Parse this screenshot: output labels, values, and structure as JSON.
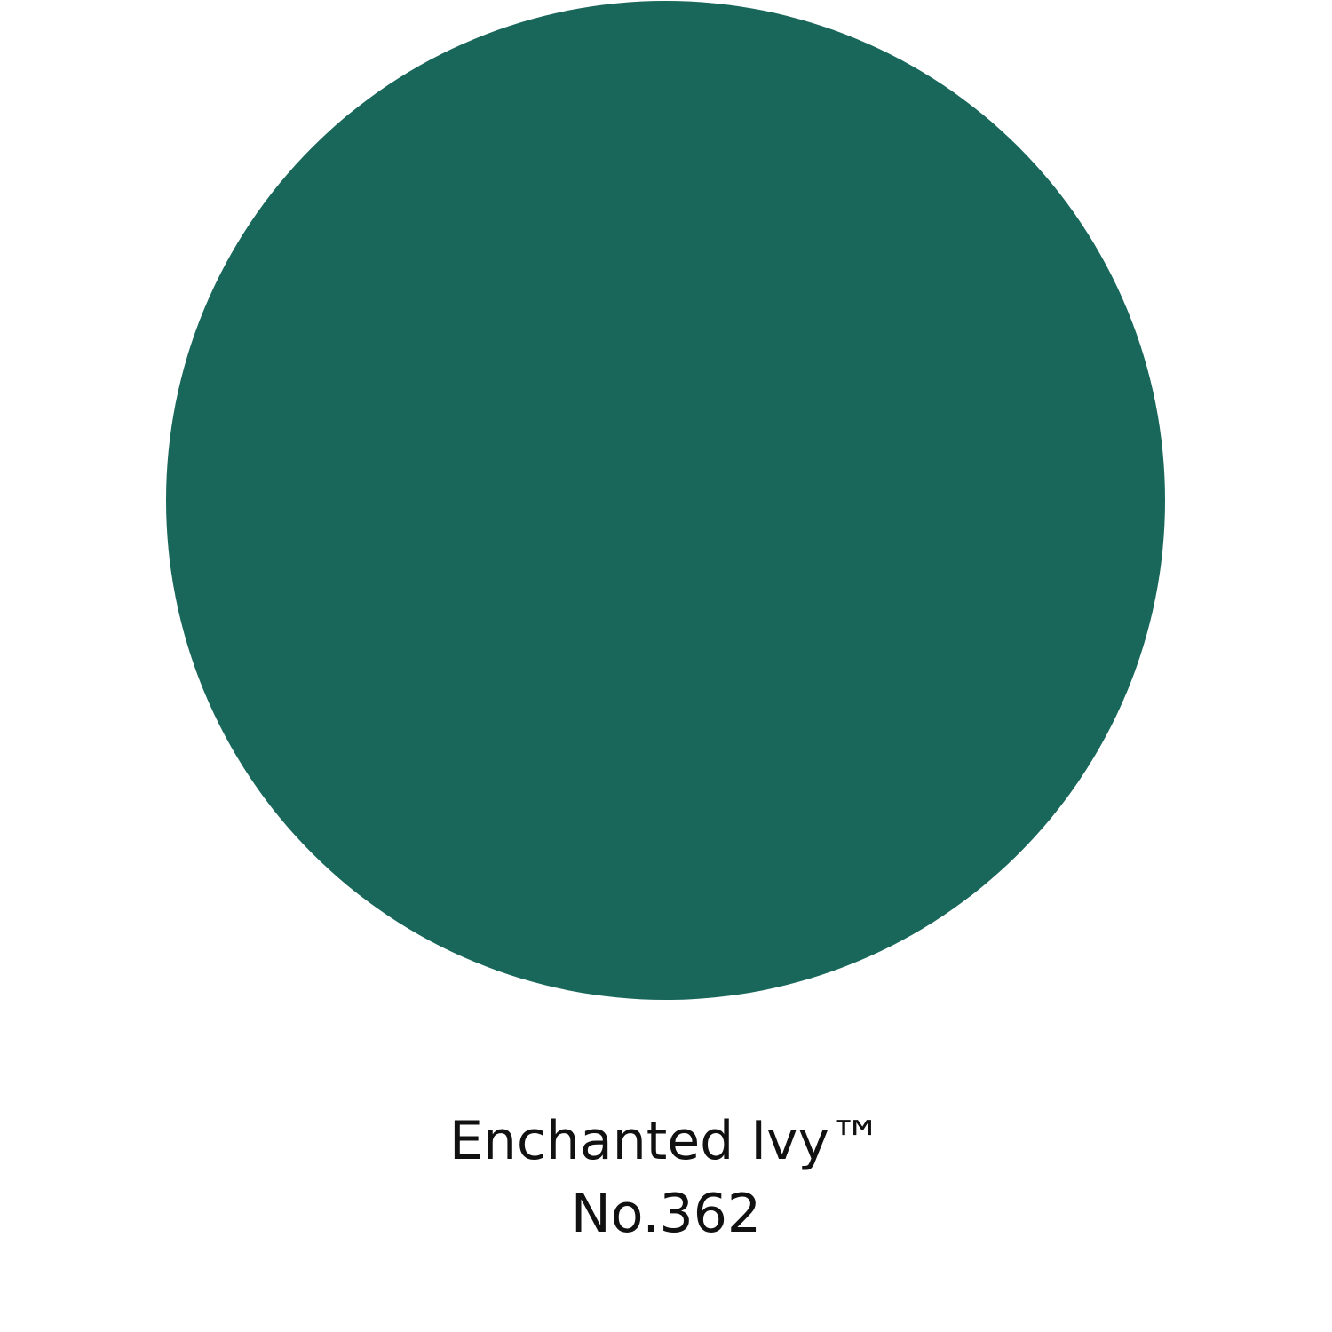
{
  "swatch": {
    "color_hex": "#19675b"
  },
  "caption": {
    "name": "Enchanted Ivy™",
    "number": "No.362"
  }
}
